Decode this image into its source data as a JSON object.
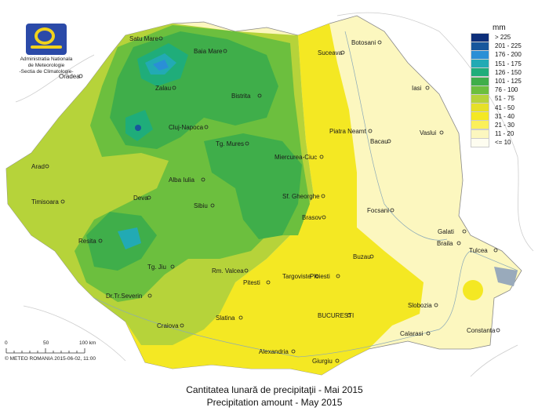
{
  "logo": {
    "lines": [
      "Administratia Nationala",
      "de Meteorologie",
      "-Sectia de Climatologie-"
    ]
  },
  "legend": {
    "unit": "mm",
    "classes": [
      {
        "label": "> 225",
        "color": "#0d2f7a"
      },
      {
        "label": "201 - 225",
        "color": "#17579c"
      },
      {
        "label": "176 - 200",
        "color": "#2a8fd6"
      },
      {
        "label": "151 - 175",
        "color": "#22aab4"
      },
      {
        "label": "126 - 150",
        "color": "#1fad7a"
      },
      {
        "label": "101 - 125",
        "color": "#3fae4a"
      },
      {
        "label": "76 - 100",
        "color": "#6cbf3e"
      },
      {
        "label": "51 - 75",
        "color": "#b6d33a"
      },
      {
        "label": "41 - 50",
        "color": "#e6e028"
      },
      {
        "label": "31 - 40",
        "color": "#f4e823"
      },
      {
        "label": "21 - 30",
        "color": "#fbf05a"
      },
      {
        "label": "11 - 20",
        "color": "#fcf7bf"
      },
      {
        "label": "<= 10",
        "color": "#fefdf0"
      }
    ]
  },
  "cities": [
    "Satu Mare",
    "Baia Mare",
    "Botosani",
    "Suceava",
    "Zalau",
    "Oradea",
    "Bistrita",
    "Iasi",
    "Cluj-Napoca",
    "Piatra Neamt",
    "Vaslui",
    "Bacau",
    "Tg. Mures",
    "Miercurea-Ciuc",
    "Arad",
    "Alba Iulia",
    "Deva",
    "Sibiu",
    "Sf. Gheorghe",
    "Brasov",
    "Focsani",
    "Timisoara",
    "Galati",
    "Braila",
    "Resita",
    "Tulcea",
    "Buzau",
    "Tg. Jiu",
    "Rm. Valcea",
    "Targoviste",
    "Ploiesti",
    "Pitesti",
    "Dr.Tr.Severin",
    "Slobozia",
    "BUCURESTI",
    "Craiova",
    "Slatina",
    "Constanta",
    "Calarasi",
    "Alexandria",
    "Giurgiu"
  ],
  "scale": {
    "ticks": [
      "0",
      "50",
      "100 km"
    ],
    "credit": "© METEO ROMANIA 2015-06-02, 11:00"
  },
  "title": {
    "ro": "Cantitatea lunară de precipitaţii - Mai 2015",
    "en": "Precipitation amount -  May 2015"
  }
}
